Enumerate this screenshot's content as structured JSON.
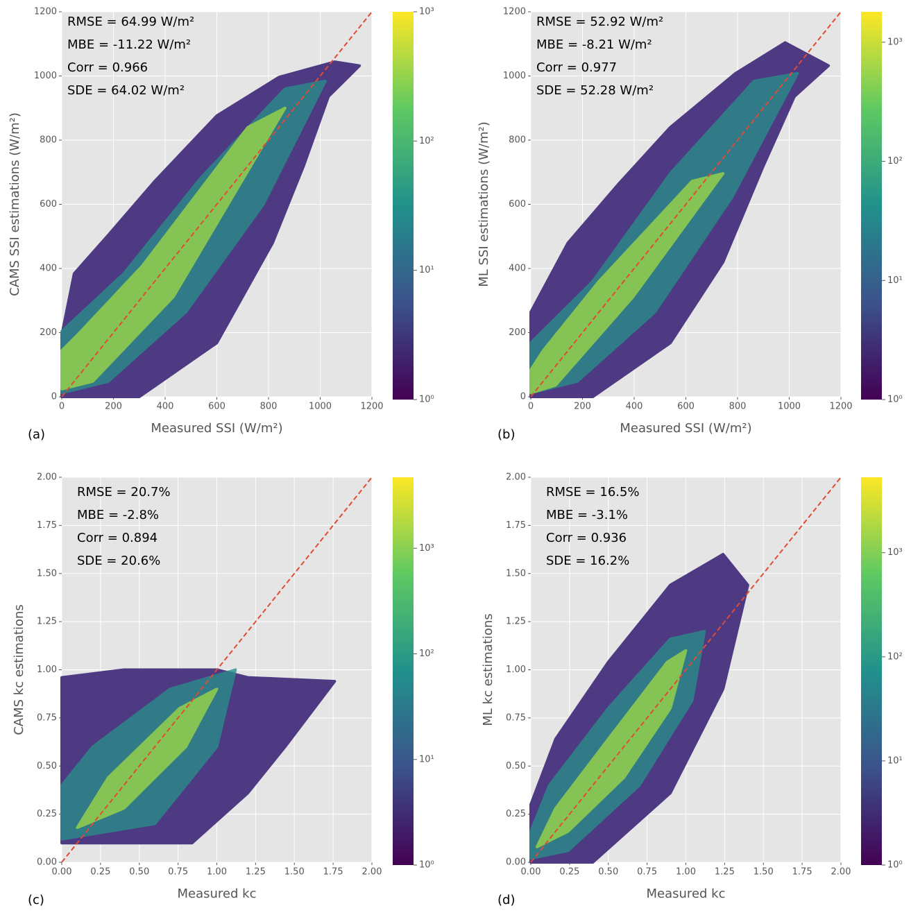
{
  "chart_data": [
    {
      "type": "hexbin",
      "panel": "(a)",
      "xlabel": "Measured SSI (W/m²)",
      "ylabel": "CAMS SSI estimations (W/m²)",
      "annotations": [
        "RMSE = 64.99 W/m²",
        "MBE = -11.22 W/m²",
        "Corr = 0.966",
        "SDE = 64.02 W/m²"
      ],
      "xlim": [
        0,
        1200
      ],
      "ylim": [
        0,
        1200
      ],
      "xticks": [
        0,
        200,
        400,
        600,
        800,
        1000,
        1200
      ],
      "yticks": [
        0,
        200,
        400,
        600,
        800,
        1000,
        1200
      ],
      "grid": true,
      "reference_line_color": "#e24a33",
      "colorbar": {
        "log_scale": true,
        "lim": [
          1,
          1000
        ],
        "ticks": [
          {
            "value": 1,
            "label": "10⁰"
          },
          {
            "value": 10,
            "label": "10¹"
          },
          {
            "value": 100,
            "label": "10²"
          },
          {
            "value": 1000,
            "label": "10³"
          }
        ]
      }
    },
    {
      "type": "hexbin",
      "panel": "(b)",
      "xlabel": "Measured SSI (W/m²)",
      "ylabel": "ML SSI estimations (W/m²)",
      "annotations": [
        "RMSE = 52.92 W/m²",
        "MBE = -8.21 W/m²",
        "Corr = 0.977",
        "SDE = 52.28 W/m²"
      ],
      "xlim": [
        0,
        1200
      ],
      "ylim": [
        0,
        1200
      ],
      "xticks": [
        0,
        200,
        400,
        600,
        800,
        1000,
        1200
      ],
      "yticks": [
        0,
        200,
        400,
        600,
        800,
        1000,
        1200
      ],
      "grid": true,
      "reference_line_color": "#e24a33",
      "colorbar": {
        "log_scale": true,
        "lim": [
          1,
          1800
        ],
        "ticks": [
          {
            "value": 1,
            "label": "10⁰"
          },
          {
            "value": 10,
            "label": "10¹"
          },
          {
            "value": 100,
            "label": "10²"
          },
          {
            "value": 1000,
            "label": "10³"
          }
        ]
      }
    },
    {
      "type": "hexbin",
      "panel": "(c)",
      "xlabel": "Measured kc",
      "ylabel": "CAMS kc estimations",
      "annotations": [
        "RMSE = 20.7%",
        "MBE = -2.8%",
        "Corr = 0.894",
        "SDE = 20.6%"
      ],
      "xlim": [
        0,
        2
      ],
      "ylim": [
        0,
        2
      ],
      "xticks": [
        {
          "value": 0,
          "label": "0.00"
        },
        {
          "value": 0.25,
          "label": "0.25"
        },
        {
          "value": 0.5,
          "label": "0.50"
        },
        {
          "value": 0.75,
          "label": "0.75"
        },
        {
          "value": 1,
          "label": "1.00"
        },
        {
          "value": 1.25,
          "label": "1.25"
        },
        {
          "value": 1.5,
          "label": "1.50"
        },
        {
          "value": 1.75,
          "label": "1.75"
        },
        {
          "value": 2,
          "label": "2.00"
        }
      ],
      "yticks": [
        {
          "value": 0,
          "label": "0.00"
        },
        {
          "value": 0.25,
          "label": "0.25"
        },
        {
          "value": 0.5,
          "label": "0.50"
        },
        {
          "value": 0.75,
          "label": "0.75"
        },
        {
          "value": 1,
          "label": "1.00"
        },
        {
          "value": 1.25,
          "label": "1.25"
        },
        {
          "value": 1.5,
          "label": "1.50"
        },
        {
          "value": 1.75,
          "label": "1.75"
        },
        {
          "value": 2,
          "label": "2.00"
        }
      ],
      "grid": true,
      "reference_line_color": "#e24a33",
      "colorbar": {
        "log_scale": true,
        "lim": [
          1,
          4700
        ],
        "ticks": [
          {
            "value": 1,
            "label": "10⁰"
          },
          {
            "value": 10,
            "label": "10¹"
          },
          {
            "value": 100,
            "label": "10²"
          },
          {
            "value": 1000,
            "label": "10³"
          }
        ]
      }
    },
    {
      "type": "hexbin",
      "panel": "(d)",
      "xlabel": "Measured kc",
      "ylabel": "ML kc estimations",
      "annotations": [
        "RMSE = 16.5%",
        "MBE = -3.1%",
        "Corr = 0.936",
        "SDE = 16.2%"
      ],
      "xlim": [
        0,
        2
      ],
      "ylim": [
        0,
        2
      ],
      "xticks": [
        {
          "value": 0,
          "label": "0.00"
        },
        {
          "value": 0.25,
          "label": "0.25"
        },
        {
          "value": 0.5,
          "label": "0.50"
        },
        {
          "value": 0.75,
          "label": "0.75"
        },
        {
          "value": 1,
          "label": "1.00"
        },
        {
          "value": 1.25,
          "label": "1.25"
        },
        {
          "value": 1.5,
          "label": "1.50"
        },
        {
          "value": 1.75,
          "label": "1.75"
        },
        {
          "value": 2,
          "label": "2.00"
        }
      ],
      "yticks": [
        {
          "value": 0,
          "label": "0.00"
        },
        {
          "value": 0.25,
          "label": "0.25"
        },
        {
          "value": 0.5,
          "label": "0.50"
        },
        {
          "value": 0.75,
          "label": "0.75"
        },
        {
          "value": 1,
          "label": "1.00"
        },
        {
          "value": 1.25,
          "label": "1.25"
        },
        {
          "value": 1.5,
          "label": "1.50"
        },
        {
          "value": 1.75,
          "label": "1.75"
        },
        {
          "value": 2,
          "label": "2.00"
        }
      ],
      "grid": true,
      "reference_line_color": "#e24a33",
      "colorbar": {
        "log_scale": true,
        "lim": [
          1,
          5300
        ],
        "ticks": [
          {
            "value": 1,
            "label": "10⁰"
          },
          {
            "value": 10,
            "label": "10¹"
          },
          {
            "value": 100,
            "label": "10²"
          },
          {
            "value": 1000,
            "label": "10³"
          }
        ]
      }
    }
  ]
}
